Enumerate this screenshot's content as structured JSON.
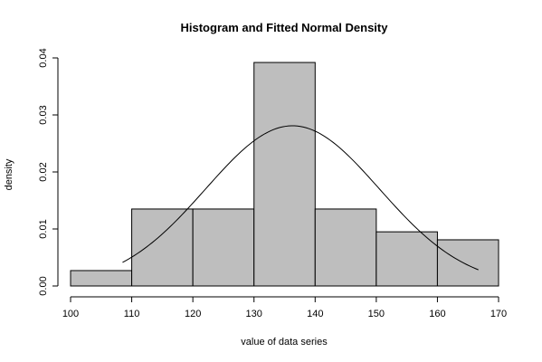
{
  "chart_data": {
    "type": "bar",
    "title": "Histogram and Fitted Normal Density",
    "xlabel": "value of data series",
    "ylabel": "density",
    "xlim": [
      100,
      170
    ],
    "ylim": [
      0,
      0.04
    ],
    "x_ticks": [
      "100",
      "110",
      "120",
      "130",
      "140",
      "150",
      "160",
      "170"
    ],
    "y_ticks": [
      "0.00",
      "0.01",
      "0.02",
      "0.03",
      "0.04"
    ],
    "bins": [
      {
        "start": 100,
        "end": 110,
        "value": 0.0027
      },
      {
        "start": 110,
        "end": 120,
        "value": 0.0135
      },
      {
        "start": 120,
        "end": 130,
        "value": 0.0135
      },
      {
        "start": 130,
        "end": 140,
        "value": 0.0392
      },
      {
        "start": 140,
        "end": 150,
        "value": 0.0135
      },
      {
        "start": 150,
        "end": 160,
        "value": 0.0095
      },
      {
        "start": 160,
        "end": 170,
        "value": 0.0081
      }
    ],
    "fitted_normal": {
      "mean": 136.3,
      "sd": 14.2,
      "x_range": [
        108.5,
        166.7
      ]
    },
    "bar_color": "#bebebe",
    "grid": false
  }
}
